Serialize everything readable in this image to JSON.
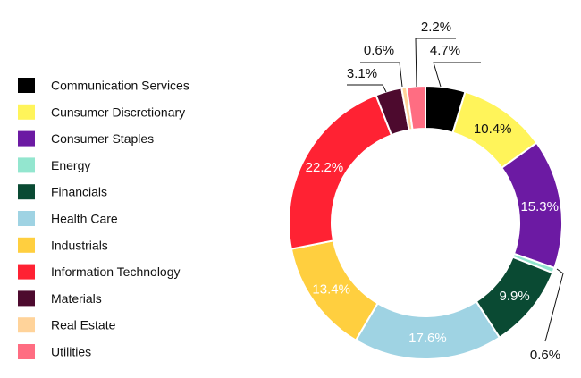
{
  "chart_data": {
    "type": "pie",
    "variant": "donut",
    "legend_placement": "left",
    "slices": [
      {
        "name": "Communication Services",
        "value": 4.7,
        "label": "4.7%",
        "color": "#000000",
        "label_color": "#111111"
      },
      {
        "name": "Cunsumer Discretionary",
        "value": 10.4,
        "label": "10.4%",
        "color": "#fff45a",
        "label_color": "#111111"
      },
      {
        "name": "Consumer Staples",
        "value": 15.3,
        "label": "15.3%",
        "color": "#6c1aa3",
        "label_color": "#ffffff"
      },
      {
        "name": "Energy",
        "value": 0.6,
        "label": "0.6%",
        "color": "#93e6cf",
        "label_color": "#111111"
      },
      {
        "name": "Financials",
        "value": 9.9,
        "label": "9.9%",
        "color": "#0a4a33",
        "label_color": "#ffffff"
      },
      {
        "name": "Health Care",
        "value": 17.6,
        "label": "17.6%",
        "color": "#9fd3e3",
        "label_color": "#ffffff"
      },
      {
        "name": "Industrials",
        "value": 13.4,
        "label": "13.4%",
        "color": "#ffcf3f",
        "label_color": "#ffffff"
      },
      {
        "name": "Information Technology",
        "value": 22.2,
        "label": "22.2%",
        "color": "#ff2233",
        "label_color": "#ffffff"
      },
      {
        "name": "Materials",
        "value": 3.1,
        "label": "3.1%",
        "color": "#4d0a2e",
        "label_color": "#111111"
      },
      {
        "name": "Real Estate",
        "value": 0.6,
        "label": "0.6%",
        "color": "#ffd39a",
        "label_color": "#111111"
      },
      {
        "name": "Utilities",
        "value": 2.2,
        "label": "2.2%",
        "color": "#ff6d82",
        "label_color": "#111111"
      }
    ]
  }
}
